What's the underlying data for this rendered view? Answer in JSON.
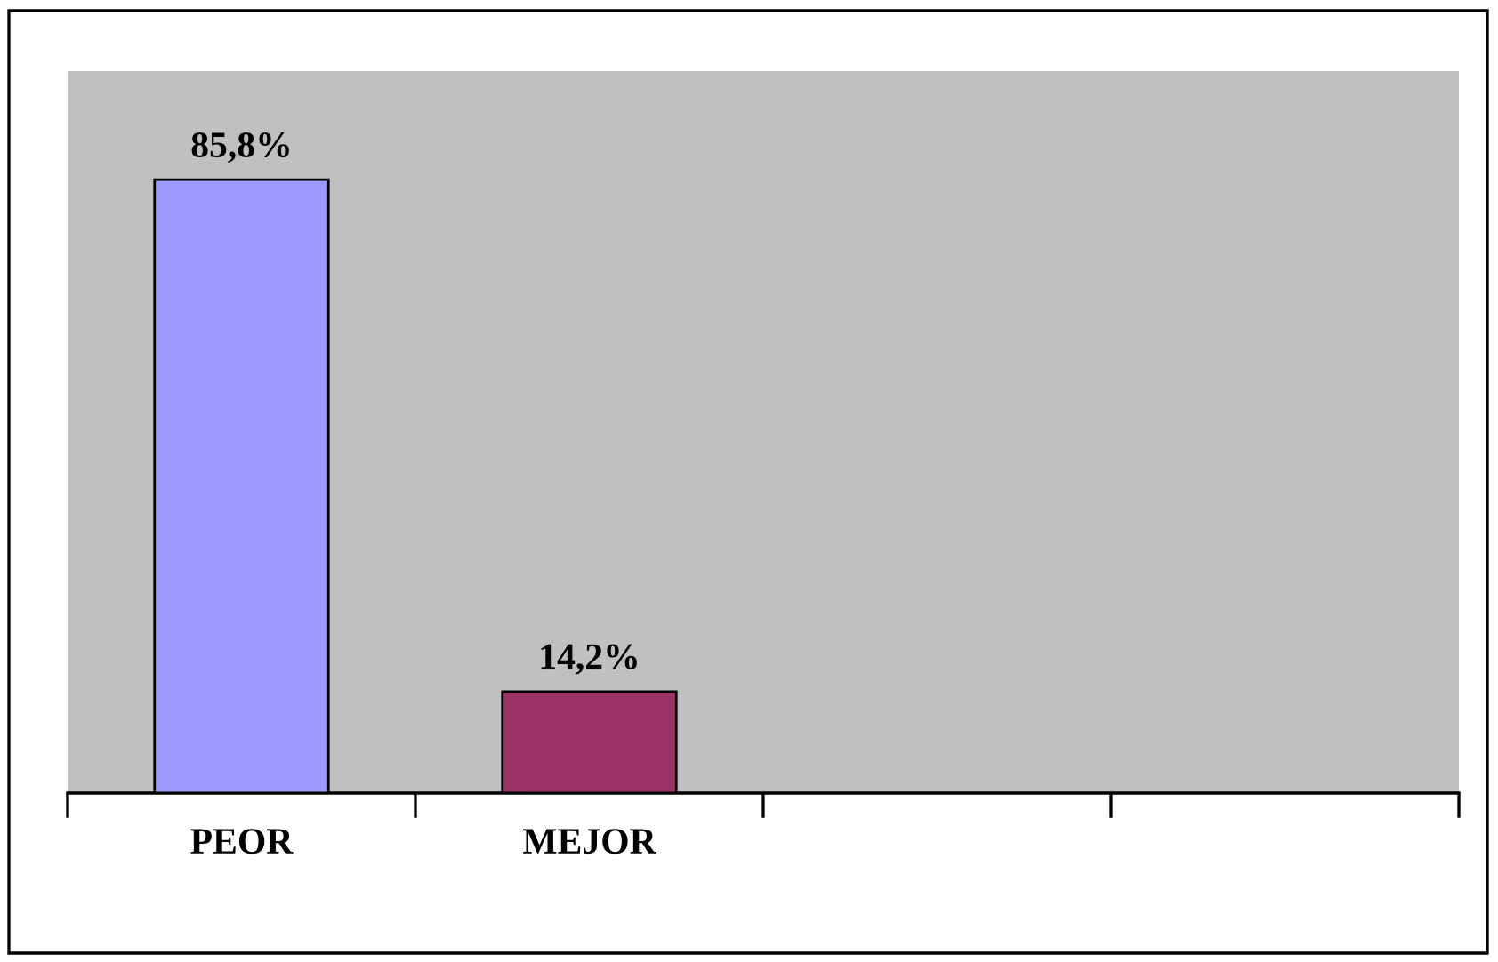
{
  "chart_data": {
    "type": "bar",
    "categories": [
      "PEOR",
      "MEJOR",
      null,
      null
    ],
    "values": [
      85.8,
      14.2,
      null,
      null
    ],
    "colors": [
      "#9999ff",
      "#993366",
      "#9999ff",
      "#9999ff"
    ],
    "value_labels": [
      "85,8%",
      "14,2%",
      null,
      null
    ],
    "ylim": [
      0,
      101
    ],
    "tick_labels": "x",
    "grid": false,
    "legend": false
  }
}
